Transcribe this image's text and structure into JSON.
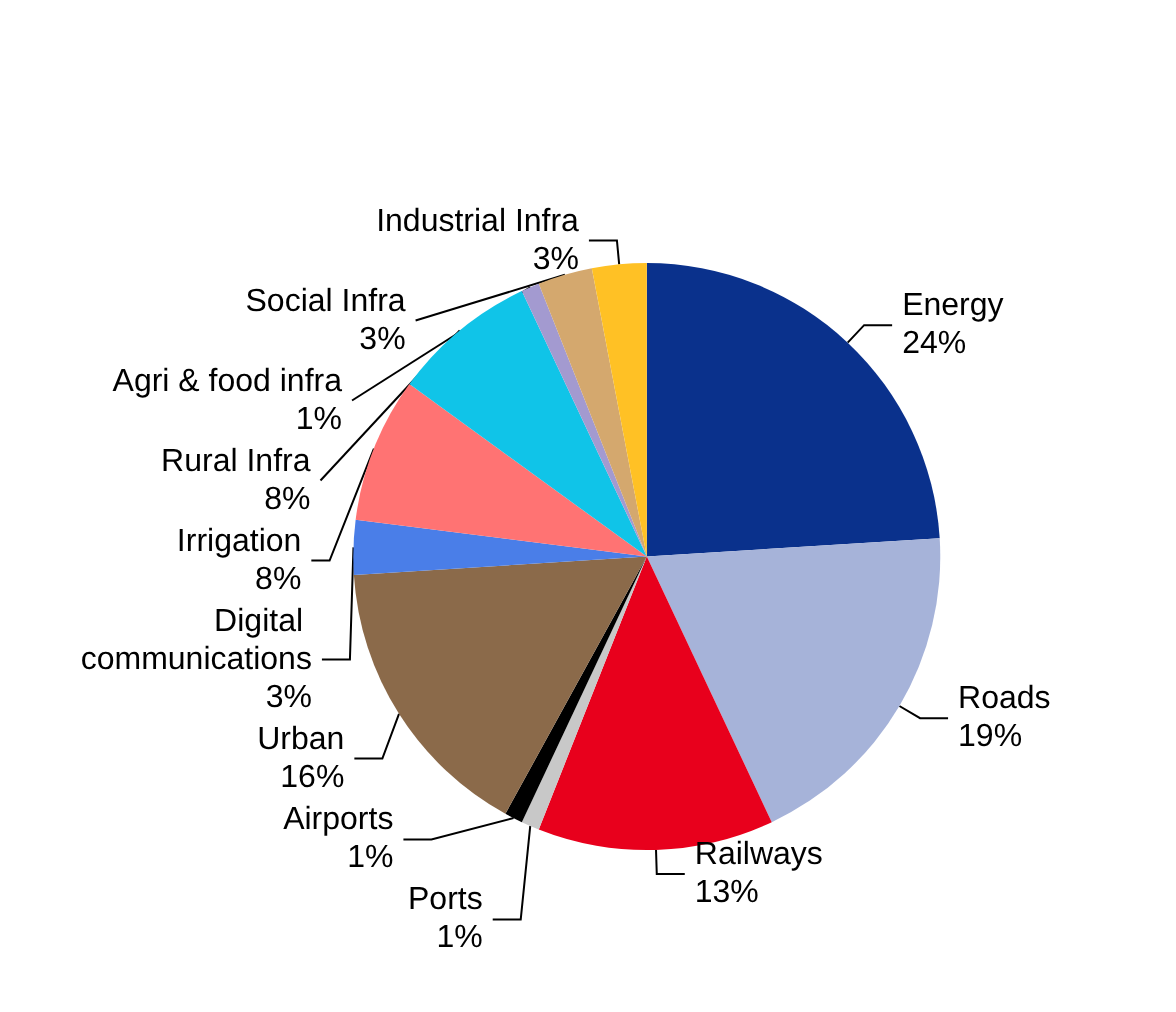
{
  "chart_data": {
    "type": "pie",
    "categories": [
      "Energy",
      "Roads",
      "Railways",
      "Ports",
      "Airports",
      "Urban",
      "Digital communications",
      "Irrigation",
      "Rural Infra",
      "Agri & food infra",
      "Social Infra",
      "Industrial Infra"
    ],
    "values": [
      24,
      19,
      13,
      1,
      1,
      16,
      3,
      8,
      8,
      1,
      3,
      3
    ],
    "value_labels": [
      "24%",
      "19%",
      "13%",
      "1%",
      "1%",
      "16%",
      "3%",
      "8%",
      "8%",
      "1%",
      "3%",
      "3%"
    ],
    "colors": [
      "#0a318c",
      "#a6b3d9",
      "#e8001c",
      "#c8c8c8",
      "#000000",
      "#8b6a4a",
      "#4a7ee8",
      "#ff7373",
      "#10c4e8",
      "#a39ad0",
      "#d4a86e",
      "#ffc125"
    ]
  }
}
